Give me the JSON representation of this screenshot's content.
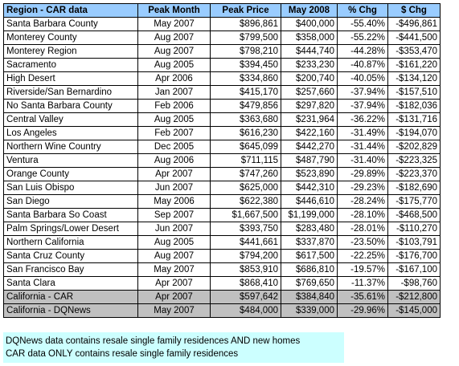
{
  "table": {
    "headers": {
      "region": "Region - CAR data",
      "peak_month": "Peak Month",
      "peak_price": "Peak Price",
      "may_2008": "May 2008",
      "pct_chg": "% Chg",
      "dollar_chg": "$ Chg"
    },
    "rows": [
      {
        "region": "Santa Barbara County",
        "peak_month": "May 2007",
        "peak_price": "$896,861",
        "may_2008": "$400,000",
        "pct_chg": "-55.40%",
        "dollar_chg": "-$496,861"
      },
      {
        "region": "Monterey County",
        "peak_month": "Aug 2007",
        "peak_price": "$799,500",
        "may_2008": "$358,000",
        "pct_chg": "-55.22%",
        "dollar_chg": "-$441,500"
      },
      {
        "region": "Monterey Region",
        "peak_month": "Aug 2007",
        "peak_price": "$798,210",
        "may_2008": "$444,740",
        "pct_chg": "-44.28%",
        "dollar_chg": "-$353,470"
      },
      {
        "region": "Sacramento",
        "peak_month": "Aug 2005",
        "peak_price": "$394,450",
        "may_2008": "$233,230",
        "pct_chg": "-40.87%",
        "dollar_chg": "-$161,220"
      },
      {
        "region": "High Desert",
        "peak_month": "Apr 2006",
        "peak_price": "$334,860",
        "may_2008": "$200,740",
        "pct_chg": "-40.05%",
        "dollar_chg": "-$134,120"
      },
      {
        "region": "Riverside/San Bernardino",
        "peak_month": "Jan 2007",
        "peak_price": "$415,170",
        "may_2008": "$257,660",
        "pct_chg": "-37.94%",
        "dollar_chg": "-$157,510"
      },
      {
        "region": "No Santa Barbara County",
        "peak_month": "Feb 2006",
        "peak_price": "$479,856",
        "may_2008": "$297,820",
        "pct_chg": "-37.94%",
        "dollar_chg": "-$182,036"
      },
      {
        "region": "Central Valley",
        "peak_month": "Aug 2005",
        "peak_price": "$363,680",
        "may_2008": "$231,964",
        "pct_chg": "-36.22%",
        "dollar_chg": "-$131,716"
      },
      {
        "region": "Los Angeles",
        "peak_month": "Feb 2007",
        "peak_price": "$616,230",
        "may_2008": "$422,160",
        "pct_chg": "-31.49%",
        "dollar_chg": "-$194,070"
      },
      {
        "region": "Northern Wine Country",
        "peak_month": "Dec 2005",
        "peak_price": "$645,099",
        "may_2008": "$442,270",
        "pct_chg": "-31.44%",
        "dollar_chg": "-$202,829"
      },
      {
        "region": "Ventura",
        "peak_month": "Aug 2006",
        "peak_price": "$711,115",
        "may_2008": "$487,790",
        "pct_chg": "-31.40%",
        "dollar_chg": "-$223,325"
      },
      {
        "region": "Orange County",
        "peak_month": "Apr 2007",
        "peak_price": "$747,260",
        "may_2008": "$523,890",
        "pct_chg": "-29.89%",
        "dollar_chg": "-$223,370"
      },
      {
        "region": "San Luis Obispo",
        "peak_month": "Jun 2007",
        "peak_price": "$625,000",
        "may_2008": "$442,310",
        "pct_chg": "-29.23%",
        "dollar_chg": "-$182,690"
      },
      {
        "region": "San Diego",
        "peak_month": "May 2006",
        "peak_price": "$622,380",
        "may_2008": "$446,610",
        "pct_chg": "-28.24%",
        "dollar_chg": "-$175,770"
      },
      {
        "region": "Santa Barbara So Coast",
        "peak_month": "Sep 2007",
        "peak_price": "$1,667,500",
        "may_2008": "$1,199,000",
        "pct_chg": "-28.10%",
        "dollar_chg": "-$468,500"
      },
      {
        "region": "Palm Springs/Lower Desert",
        "peak_month": "Jun 2007",
        "peak_price": "$393,750",
        "may_2008": "$283,480",
        "pct_chg": "-28.01%",
        "dollar_chg": "-$110,270"
      },
      {
        "region": "Northern California",
        "peak_month": "Aug 2005",
        "peak_price": "$441,661",
        "may_2008": "$337,870",
        "pct_chg": "-23.50%",
        "dollar_chg": "-$103,791"
      },
      {
        "region": "Santa Cruz County",
        "peak_month": "Aug 2007",
        "peak_price": "$794,200",
        "may_2008": "$617,500",
        "pct_chg": "-22.25%",
        "dollar_chg": "-$176,700"
      },
      {
        "region": "San Francisco Bay",
        "peak_month": "May 2007",
        "peak_price": "$853,910",
        "may_2008": "$686,810",
        "pct_chg": "-19.57%",
        "dollar_chg": "-$167,100"
      },
      {
        "region": "Santa Clara",
        "peak_month": "Apr 2007",
        "peak_price": "$868,410",
        "may_2008": "$769,650",
        "pct_chg": "-11.37%",
        "dollar_chg": "-$98,760"
      }
    ],
    "summary_rows": [
      {
        "region": "California - CAR",
        "peak_month": "Apr 2007",
        "peak_price": "$597,642",
        "may_2008": "$384,840",
        "pct_chg": "-35.61%",
        "dollar_chg": "-$212,800"
      },
      {
        "region": "California - DQNews",
        "peak_month": "May 2007",
        "peak_price": "$484,000",
        "may_2008": "$339,000",
        "pct_chg": "-29.96%",
        "dollar_chg": "-$145,000"
      }
    ]
  },
  "notes": {
    "line1": "DQNews data contains resale single family residences AND new homes",
    "line2": "CAR data ONLY contains resale single family residences"
  },
  "colors": {
    "header_bg": "#99ccff",
    "summary_bg": "#c0c0c0",
    "notes_bg": "#ccffff"
  }
}
